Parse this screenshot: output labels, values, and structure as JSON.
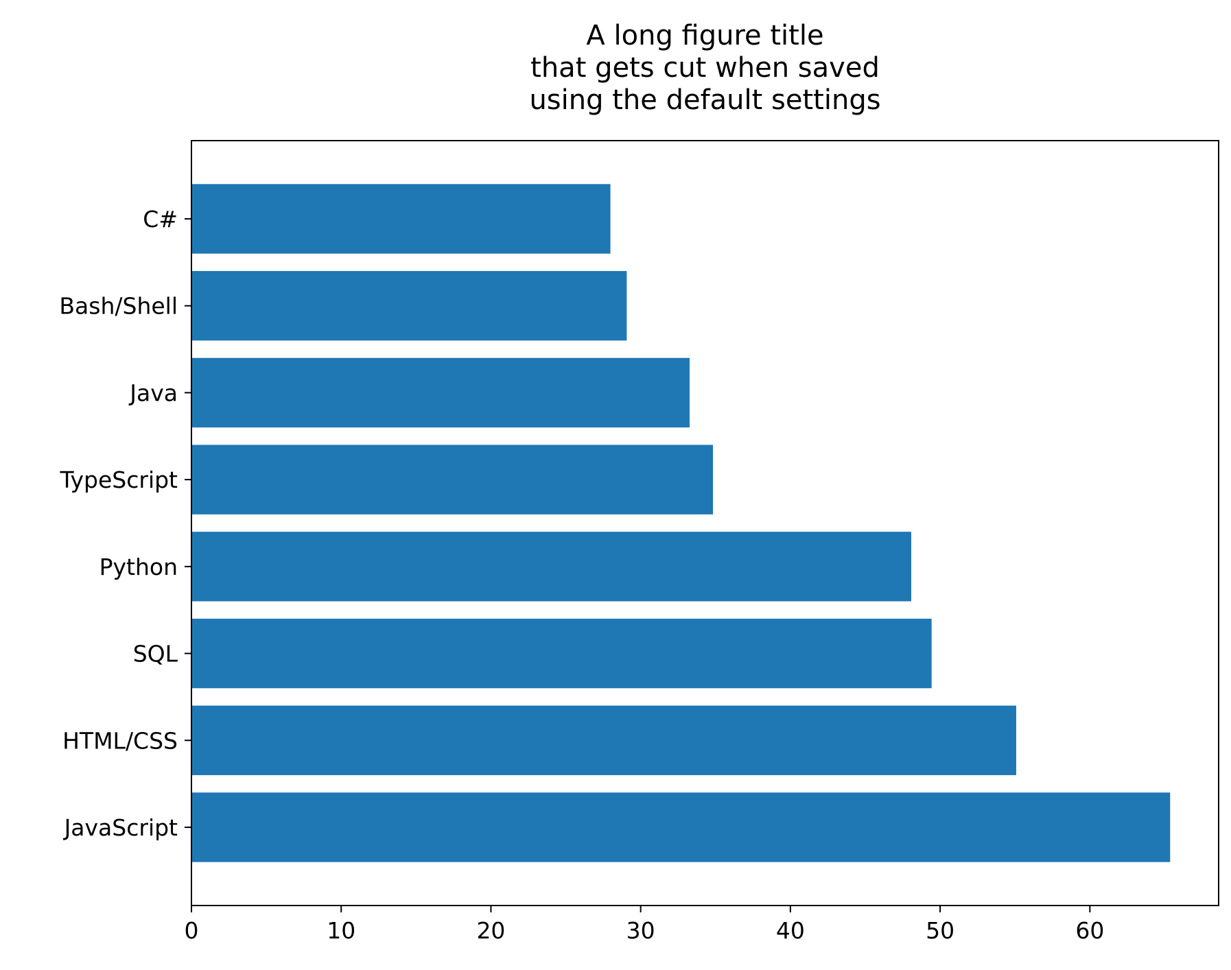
{
  "chart_data": {
    "type": "bar",
    "orientation": "horizontal",
    "title_lines": [
      "A long figure title",
      "that gets cut when saved",
      "using the default settings"
    ],
    "xlabel": "",
    "ylabel": "",
    "categories": [
      "JavaScript",
      "HTML/CSS",
      "SQL",
      "Python",
      "TypeScript",
      "Java",
      "Bash/Shell",
      "C#"
    ],
    "values": [
      65.36,
      55.08,
      49.43,
      48.07,
      34.83,
      33.27,
      29.07,
      27.98
    ],
    "xlim": [
      0,
      68.6
    ],
    "xticks": [
      0,
      10,
      20,
      30,
      40,
      50,
      60
    ],
    "grid": false,
    "legend": "none",
    "bar_color": "#1f77b4"
  }
}
